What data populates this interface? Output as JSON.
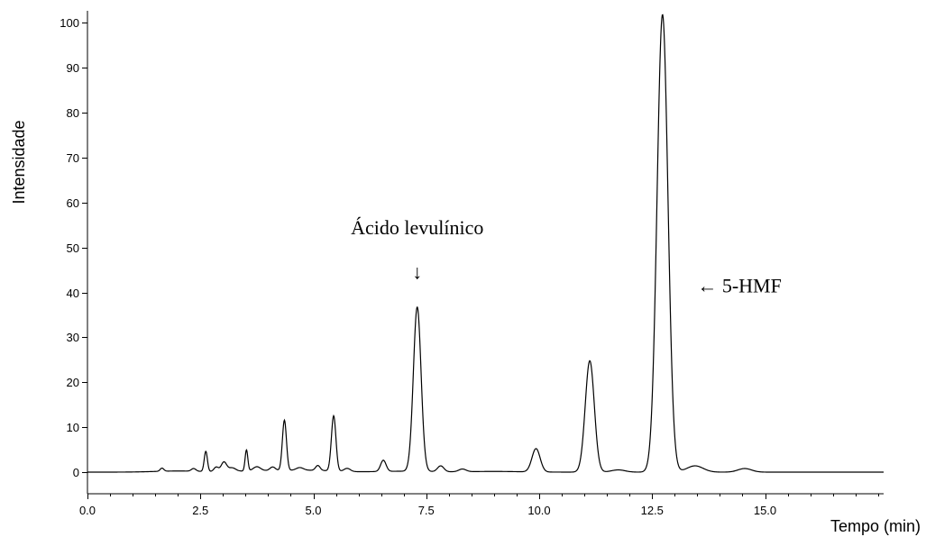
{
  "chart_data": {
    "type": "line",
    "xlabel": "Tempo (min)",
    "ylabel": "Intensidade",
    "xlim": [
      0,
      17.6
    ],
    "ylim": [
      -5,
      103
    ],
    "x_ticks": [
      0,
      2.5,
      5,
      7.5,
      10,
      12.5,
      15
    ],
    "x_tick_labels": [
      "0.0",
      "2.5",
      "5.0",
      "7.5",
      "10.0",
      "12.5",
      "15.0"
    ],
    "x_minor_step": 0.5,
    "y_ticks": [
      0,
      10,
      20,
      30,
      40,
      50,
      60,
      70,
      80,
      90,
      100
    ],
    "y_tick_labels": [
      "0",
      "10",
      "20",
      "30",
      "40",
      "50",
      "60",
      "70",
      "80",
      "90",
      "100"
    ],
    "grid": false,
    "series": [
      {
        "peaks": [
          {
            "x": 1.65,
            "height": 0.7,
            "width": 0.04
          },
          {
            "x": 2.35,
            "height": 0.6,
            "width": 0.05
          },
          {
            "x": 2.62,
            "height": 4.5,
            "width": 0.035
          },
          {
            "x": 2.85,
            "height": 1.0,
            "width": 0.05
          },
          {
            "x": 3.02,
            "height": 2.1,
            "width": 0.06
          },
          {
            "x": 3.2,
            "height": 0.8,
            "width": 0.08
          },
          {
            "x": 3.52,
            "height": 4.7,
            "width": 0.03
          },
          {
            "x": 3.75,
            "height": 0.9,
            "width": 0.08
          },
          {
            "x": 4.1,
            "height": 0.8,
            "width": 0.06
          },
          {
            "x": 4.36,
            "height": 11.2,
            "width": 0.045
          },
          {
            "x": 4.7,
            "height": 0.6,
            "width": 0.08
          },
          {
            "x": 5.1,
            "height": 1.1,
            "width": 0.05
          },
          {
            "x": 5.45,
            "height": 12.3,
            "width": 0.05
          },
          {
            "x": 5.75,
            "height": 0.7,
            "width": 0.07
          },
          {
            "x": 6.55,
            "height": 2.5,
            "width": 0.06
          },
          {
            "x": 7.3,
            "height": 36.6,
            "width": 0.085
          },
          {
            "x": 7.82,
            "height": 1.3,
            "width": 0.07
          },
          {
            "x": 8.3,
            "height": 0.6,
            "width": 0.08
          },
          {
            "x": 9.93,
            "height": 5.2,
            "width": 0.09
          },
          {
            "x": 11.12,
            "height": 24.8,
            "width": 0.1
          },
          {
            "x": 11.75,
            "height": 0.5,
            "width": 0.15
          },
          {
            "x": 12.73,
            "height": 101.9,
            "width": 0.12
          },
          {
            "x": 13.45,
            "height": 1.4,
            "width": 0.18
          },
          {
            "x": 14.55,
            "height": 0.8,
            "width": 0.15
          }
        ],
        "baseline": [
          {
            "x": 2.0,
            "height": 0.25,
            "width": 0.5
          },
          {
            "x": 3.9,
            "height": 0.3,
            "width": 0.6
          },
          {
            "x": 5.0,
            "height": 0.35,
            "width": 0.5
          },
          {
            "x": 7.0,
            "height": 0.2,
            "width": 0.6
          },
          {
            "x": 9.0,
            "height": 0.15,
            "width": 0.6
          }
        ]
      }
    ],
    "annotations": [
      {
        "text": "Ácido levulínico",
        "x": 7.3,
        "y": 53,
        "marker": "↓",
        "marker_y": 43
      },
      {
        "text": "← 5-HMF",
        "x": 13.5,
        "y": 40
      }
    ]
  }
}
